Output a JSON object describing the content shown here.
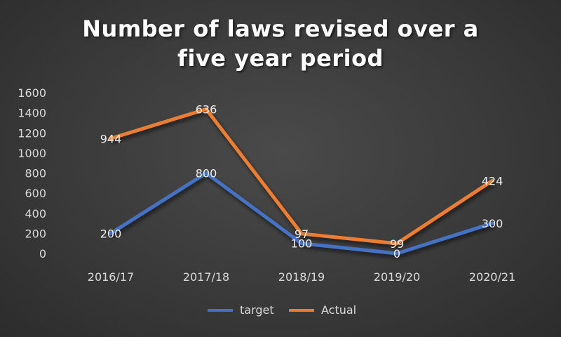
{
  "chart_data": {
    "type": "line",
    "title": "Number of laws revised over a five year period",
    "categories": [
      "2016/17",
      "2017/18",
      "2018/19",
      "2019/20",
      "2020/21"
    ],
    "ylim": [
      0,
      1600
    ],
    "yticks": [
      0,
      200,
      400,
      600,
      800,
      1000,
      1200,
      1400,
      1600
    ],
    "grid": false,
    "legend_position": "bottom",
    "series": [
      {
        "name": "target",
        "color": "#4472c4",
        "values": [
          200,
          800,
          100,
          0,
          300
        ],
        "data_labels": [
          "200",
          "800",
          "100",
          "0",
          "300"
        ]
      },
      {
        "name": "Actual",
        "color": "#ed7d31",
        "values": [
          1144,
          1436,
          197,
          99,
          724
        ],
        "data_labels": [
          "944",
          "636",
          "97",
          "99",
          "424"
        ]
      }
    ]
  }
}
